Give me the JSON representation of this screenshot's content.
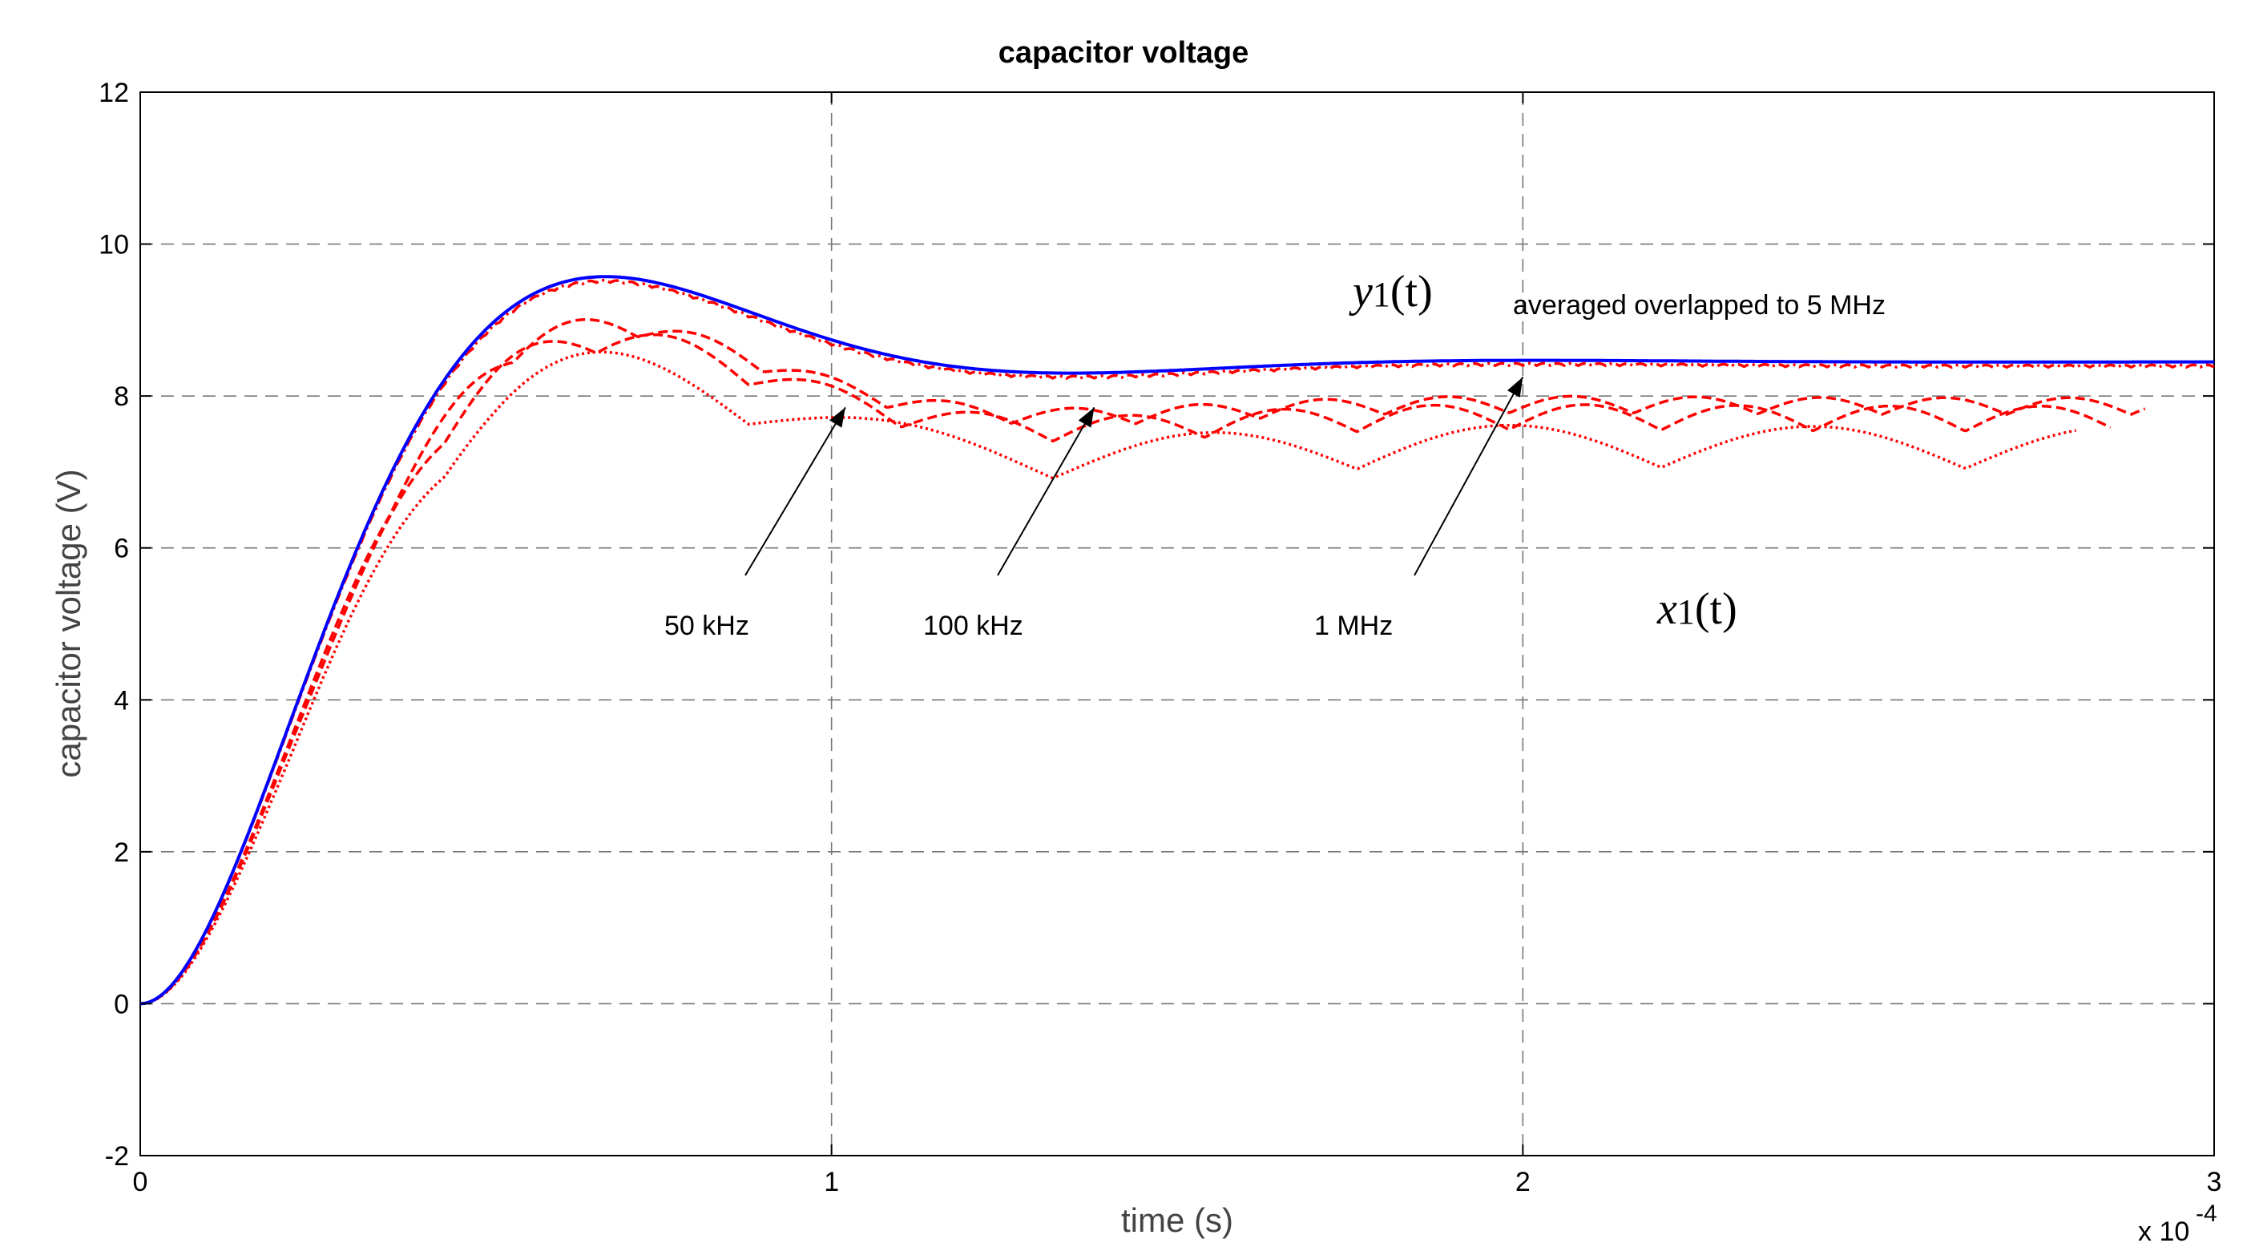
{
  "chart_data": {
    "type": "line",
    "title": "capacitor voltage",
    "xlabel": "time (s)",
    "ylabel": "capacitor voltage (V)",
    "xlim": [
      0,
      3
    ],
    "ylim": [
      -2,
      12
    ],
    "x_multiplier_label": "x 10",
    "x_multiplier_exponent": "-4",
    "x_ticks": [
      "0",
      "1",
      "2",
      "3"
    ],
    "y_ticks": [
      "-2",
      "0",
      "2",
      "4",
      "6",
      "8",
      "10",
      "12"
    ],
    "grid": true,
    "series": [
      {
        "name": "y1(t) averaged",
        "color": "#0000ff",
        "style": "solid",
        "x_max": 3.0,
        "final": 8.45,
        "ripple_amp": 0,
        "ripple_period": 0
      },
      {
        "name": "5 MHz",
        "color": "#ff0000",
        "style": "dashdot",
        "x_max": 3.0,
        "final": 8.4,
        "ripple_amp": 0.03,
        "ripple_period": 0.02
      },
      {
        "name": "1 MHz",
        "color": "#ff0000",
        "style": "dashed",
        "x_max": 2.9,
        "final": 7.9,
        "ripple_amp": 0.22,
        "ripple_period": 0.18
      },
      {
        "name": "100 kHz",
        "color": "#ff0000",
        "style": "dashed",
        "x_max": 2.85,
        "final": 7.75,
        "ripple_amp": 0.33,
        "ripple_period": 0.22
      },
      {
        "name": "50 kHz",
        "color": "#ff0000",
        "style": "dotted",
        "x_max": 2.8,
        "final": 7.4,
        "ripple_amp": 0.55,
        "ripple_period": 0.44
      }
    ],
    "annotations": {
      "y1_label": {
        "var": "y",
        "sub": "1",
        "arg": "(t)"
      },
      "x1_label": {
        "var": "x",
        "sub": "1",
        "arg": "(t)"
      },
      "averaged_text": "averaged overlapped to 5 MHz",
      "arrows": [
        {
          "label": "50 kHz",
          "tip_x": 1.02,
          "tip_y": 7.85
        },
        {
          "label": "100 kHz",
          "tip_x": 1.38,
          "tip_y": 7.85
        },
        {
          "label": "1 MHz",
          "tip_x": 2.0,
          "tip_y": 8.25
        }
      ]
    }
  }
}
